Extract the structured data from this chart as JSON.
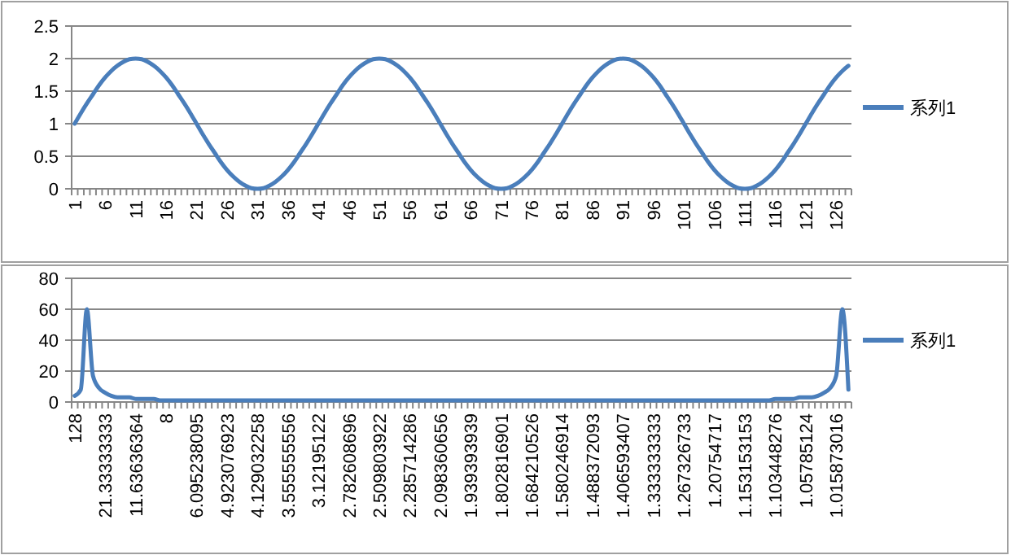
{
  "chart_data": [
    {
      "type": "line",
      "categories": [
        "1",
        null,
        null,
        null,
        null,
        "6",
        null,
        null,
        null,
        null,
        "11",
        null,
        null,
        null,
        null,
        "16",
        null,
        null,
        null,
        null,
        "21",
        null,
        null,
        null,
        null,
        "26",
        null,
        null,
        null,
        null,
        "31",
        null,
        null,
        null,
        null,
        "36",
        null,
        null,
        null,
        null,
        "41",
        null,
        null,
        null,
        null,
        "46",
        null,
        null,
        null,
        null,
        "51",
        null,
        null,
        null,
        null,
        "56",
        null,
        null,
        null,
        null,
        "61",
        null,
        null,
        null,
        null,
        "66",
        null,
        null,
        null,
        null,
        "71",
        null,
        null,
        null,
        null,
        "76",
        null,
        null,
        null,
        null,
        "81",
        null,
        null,
        null,
        null,
        "86",
        null,
        null,
        null,
        null,
        "91",
        null,
        null,
        null,
        null,
        "96",
        null,
        null,
        null,
        null,
        "101",
        null,
        null,
        null,
        null,
        "106",
        null,
        null,
        null,
        null,
        "111",
        null,
        null,
        null,
        null,
        "116",
        null,
        null,
        null,
        null,
        "121",
        null,
        null,
        null,
        null,
        "126",
        null,
        null
      ],
      "series": [
        {
          "name": "系列1",
          "color": "#4a7ebb",
          "values": [
            1,
            1.16,
            1.31,
            1.45,
            1.59,
            1.71,
            1.81,
            1.89,
            1.95,
            1.99,
            2,
            1.99,
            1.95,
            1.89,
            1.81,
            1.71,
            1.59,
            1.45,
            1.31,
            1.16,
            1,
            0.84,
            0.69,
            0.55,
            0.41,
            0.29,
            0.19,
            0.11,
            0.05,
            0.01,
            0,
            0.01,
            0.05,
            0.11,
            0.19,
            0.29,
            0.41,
            0.55,
            0.69,
            0.84,
            1,
            1.16,
            1.31,
            1.45,
            1.59,
            1.71,
            1.81,
            1.89,
            1.95,
            1.99,
            2,
            1.99,
            1.95,
            1.89,
            1.81,
            1.71,
            1.59,
            1.45,
            1.31,
            1.16,
            1,
            0.84,
            0.69,
            0.55,
            0.41,
            0.29,
            0.19,
            0.11,
            0.05,
            0.01,
            0,
            0.01,
            0.05,
            0.11,
            0.19,
            0.29,
            0.41,
            0.55,
            0.69,
            0.84,
            1,
            1.16,
            1.31,
            1.45,
            1.59,
            1.71,
            1.81,
            1.89,
            1.95,
            1.99,
            2,
            1.99,
            1.95,
            1.89,
            1.81,
            1.71,
            1.59,
            1.45,
            1.31,
            1.16,
            1,
            0.84,
            0.69,
            0.55,
            0.41,
            0.29,
            0.19,
            0.11,
            0.05,
            0.01,
            0,
            0.01,
            0.05,
            0.11,
            0.19,
            0.29,
            0.41,
            0.55,
            0.69,
            0.84,
            1,
            1.16,
            1.31,
            1.45,
            1.59,
            1.71,
            1.81,
            1.89
          ]
        }
      ],
      "ylim": [
        0,
        2.5
      ],
      "yticks": [
        0,
        0.5,
        1,
        1.5,
        2,
        2.5
      ],
      "grid": "y",
      "legend": "right"
    },
    {
      "type": "line",
      "categories": [
        "128",
        null,
        null,
        null,
        null,
        "21.33333333",
        null,
        null,
        null,
        null,
        "11.63636364",
        null,
        null,
        null,
        null,
        "8",
        null,
        null,
        null,
        null,
        "6.095238095",
        null,
        null,
        null,
        null,
        "4.923076923",
        null,
        null,
        null,
        null,
        "4.129032258",
        null,
        null,
        null,
        null,
        "3.555555556",
        null,
        null,
        null,
        null,
        "3.12195122",
        null,
        null,
        null,
        null,
        "2.782608696",
        null,
        null,
        null,
        null,
        "2.509803922",
        null,
        null,
        null,
        null,
        "2.285714286",
        null,
        null,
        null,
        null,
        "2.098360656",
        null,
        null,
        null,
        null,
        "1.939393939",
        null,
        null,
        null,
        null,
        "1.802816901",
        null,
        null,
        null,
        null,
        "1.684210526",
        null,
        null,
        null,
        null,
        "1.580246914",
        null,
        null,
        null,
        null,
        "1.488372093",
        null,
        null,
        null,
        null,
        "1.406593407",
        null,
        null,
        null,
        null,
        "1.333333333",
        null,
        null,
        null,
        null,
        "1.267326733",
        null,
        null,
        null,
        null,
        "1.20754717",
        null,
        null,
        null,
        null,
        "1.153153153",
        null,
        null,
        null,
        null,
        "1.103448276",
        null,
        null,
        null,
        null,
        "1.05785124",
        null,
        null,
        null,
        null,
        "1.015873016",
        null,
        null
      ],
      "series": [
        {
          "name": "系列1",
          "color": "#4a7ebb",
          "values": [
            4,
            8,
            60,
            17,
            9,
            6,
            4,
            3,
            3,
            3,
            2,
            2,
            2,
            2,
            1,
            1,
            1,
            1,
            1,
            1,
            1,
            1,
            1,
            1,
            1,
            1,
            1,
            1,
            1,
            1,
            1,
            1,
            1,
            1,
            1,
            1,
            1,
            1,
            1,
            1,
            1,
            1,
            1,
            1,
            1,
            1,
            1,
            1,
            1,
            1,
            1,
            1,
            1,
            1,
            1,
            1,
            1,
            1,
            1,
            1,
            1,
            1,
            1,
            1,
            1,
            1,
            1,
            1,
            1,
            1,
            1,
            1,
            1,
            1,
            1,
            1,
            1,
            1,
            1,
            1,
            1,
            1,
            1,
            1,
            1,
            1,
            1,
            1,
            1,
            1,
            1,
            1,
            1,
            1,
            1,
            1,
            1,
            1,
            1,
            1,
            1,
            1,
            1,
            1,
            1,
            1,
            1,
            1,
            1,
            1,
            1,
            1,
            1,
            1,
            1,
            2,
            2,
            2,
            2,
            3,
            3,
            3,
            4,
            6,
            9,
            17,
            60,
            8
          ]
        }
      ],
      "ylim": [
        0,
        80
      ],
      "yticks": [
        0,
        20,
        40,
        60,
        80
      ],
      "grid": "y",
      "legend": "right"
    }
  ]
}
